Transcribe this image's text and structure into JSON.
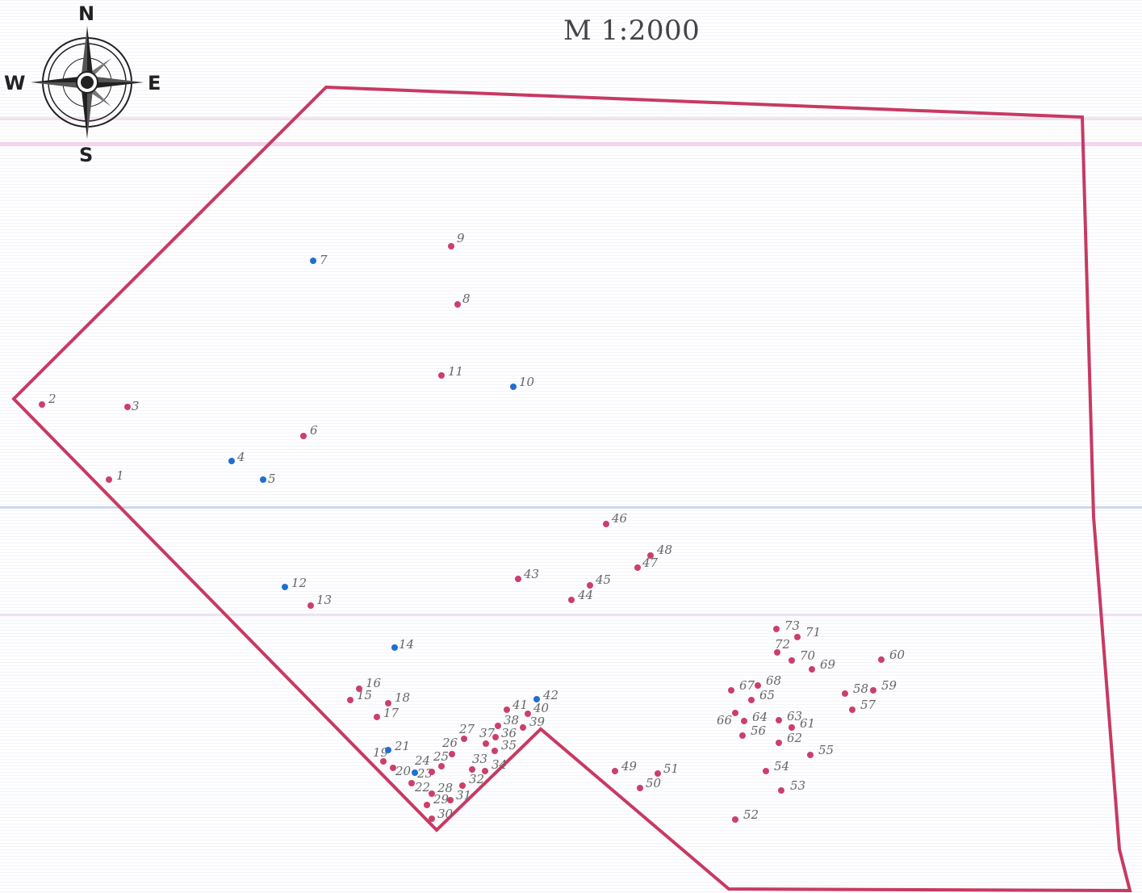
{
  "title": "M 1:2000",
  "compass": {
    "icon": "compass-rose-icon",
    "north": "N",
    "south": "S",
    "east": "E",
    "west": "W"
  },
  "colors": {
    "boundary": "#c73a62",
    "point_red": "#cc3f6a",
    "point_blue": "#1f6fd0",
    "label": "#666666"
  },
  "points": [
    {
      "id": "1",
      "type": "red"
    },
    {
      "id": "2",
      "type": "red"
    },
    {
      "id": "3",
      "type": "red"
    },
    {
      "id": "4",
      "type": "blue"
    },
    {
      "id": "5",
      "type": "blue"
    },
    {
      "id": "6",
      "type": "red"
    },
    {
      "id": "7",
      "type": "blue"
    },
    {
      "id": "8",
      "type": "red"
    },
    {
      "id": "9",
      "type": "red"
    },
    {
      "id": "10",
      "type": "blue"
    },
    {
      "id": "11",
      "type": "red"
    },
    {
      "id": "12",
      "type": "blue"
    },
    {
      "id": "13",
      "type": "red"
    },
    {
      "id": "14",
      "type": "blue"
    },
    {
      "id": "15",
      "type": "red"
    },
    {
      "id": "16",
      "type": "red"
    },
    {
      "id": "17",
      "type": "red"
    },
    {
      "id": "18",
      "type": "red"
    },
    {
      "id": "19",
      "type": "red"
    },
    {
      "id": "20",
      "type": "red"
    },
    {
      "id": "21",
      "type": "blue"
    },
    {
      "id": "22",
      "type": "red"
    },
    {
      "id": "23",
      "type": "blue"
    },
    {
      "id": "24",
      "type": "red"
    },
    {
      "id": "25",
      "type": "red"
    },
    {
      "id": "26",
      "type": "red"
    },
    {
      "id": "27",
      "type": "red"
    },
    {
      "id": "28",
      "type": "red"
    },
    {
      "id": "29",
      "type": "red"
    },
    {
      "id": "30",
      "type": "red"
    },
    {
      "id": "31",
      "type": "red"
    },
    {
      "id": "32",
      "type": "red"
    },
    {
      "id": "33",
      "type": "red"
    },
    {
      "id": "34",
      "type": "red"
    },
    {
      "id": "35",
      "type": "red"
    },
    {
      "id": "36",
      "type": "red"
    },
    {
      "id": "37",
      "type": "red"
    },
    {
      "id": "38",
      "type": "red"
    },
    {
      "id": "39",
      "type": "red"
    },
    {
      "id": "40",
      "type": "red"
    },
    {
      "id": "41",
      "type": "red"
    },
    {
      "id": "42",
      "type": "blue"
    },
    {
      "id": "43",
      "type": "red"
    },
    {
      "id": "44",
      "type": "red"
    },
    {
      "id": "45",
      "type": "red"
    },
    {
      "id": "46",
      "type": "red"
    },
    {
      "id": "47",
      "type": "red"
    },
    {
      "id": "48",
      "type": "red"
    },
    {
      "id": "49",
      "type": "red"
    },
    {
      "id": "50",
      "type": "red"
    },
    {
      "id": "51",
      "type": "red"
    },
    {
      "id": "52",
      "type": "red"
    },
    {
      "id": "53",
      "type": "red"
    },
    {
      "id": "54",
      "type": "red"
    },
    {
      "id": "55",
      "type": "red"
    },
    {
      "id": "56",
      "type": "red"
    },
    {
      "id": "57",
      "type": "red"
    },
    {
      "id": "58",
      "type": "red"
    },
    {
      "id": "59",
      "type": "red"
    },
    {
      "id": "60",
      "type": "red"
    },
    {
      "id": "61",
      "type": "red"
    },
    {
      "id": "62",
      "type": "red"
    },
    {
      "id": "63",
      "type": "red"
    },
    {
      "id": "64",
      "type": "red"
    },
    {
      "id": "65",
      "type": "red"
    },
    {
      "id": "66",
      "type": "red"
    },
    {
      "id": "67",
      "type": "red"
    },
    {
      "id": "68",
      "type": "red"
    },
    {
      "id": "69",
      "type": "red"
    },
    {
      "id": "70",
      "type": "red"
    },
    {
      "id": "71",
      "type": "red"
    },
    {
      "id": "72",
      "type": "red"
    },
    {
      "id": "73",
      "type": "red"
    }
  ]
}
